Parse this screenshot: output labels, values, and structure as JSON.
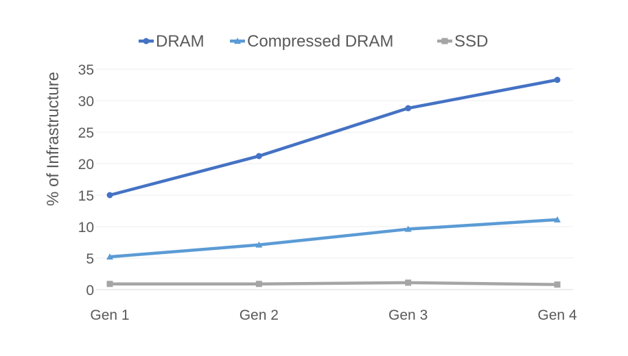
{
  "chart_data": {
    "type": "line",
    "title": "",
    "xlabel": "",
    "ylabel": "% of Infrastructure",
    "categories": [
      "Gen 1",
      "Gen 2",
      "Gen 3",
      "Gen 4"
    ],
    "ylim": [
      0,
      35
    ],
    "yticks": [
      0,
      5,
      10,
      15,
      20,
      25,
      30,
      35
    ],
    "grid": true,
    "legend_position": "top",
    "series": [
      {
        "name": "DRAM",
        "values": [
          15.0,
          21.2,
          28.8,
          33.3
        ],
        "color": "#4472C4",
        "marker": "circle"
      },
      {
        "name": "Compressed DRAM",
        "values": [
          5.2,
          7.1,
          9.6,
          11.1
        ],
        "color": "#5B9BD5",
        "marker": "triangle"
      },
      {
        "name": "SSD",
        "values": [
          0.9,
          0.9,
          1.1,
          0.8
        ],
        "color": "#A5A5A5",
        "marker": "square"
      }
    ]
  }
}
